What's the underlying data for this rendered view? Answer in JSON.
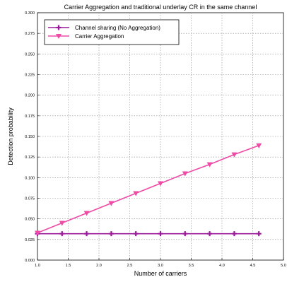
{
  "chart_data": {
    "type": "line",
    "title": "Carrier Aggregation and traditional underlay CR in the same channel",
    "xlabel": "Number of carriers",
    "ylabel": "Detection probability",
    "xlim": [
      1.0,
      5.0
    ],
    "ylim": [
      0.0,
      0.3
    ],
    "x_ticks": [
      "1.0",
      "1.5",
      "2.0",
      "2.5",
      "3.0",
      "3.5",
      "4.0",
      "4.5",
      "5.0"
    ],
    "y_ticks": [
      "0.000",
      "0.025",
      "0.050",
      "0.075",
      "0.100",
      "0.125",
      "0.150",
      "0.175",
      "0.200",
      "0.225",
      "0.250",
      "0.275",
      "0.300"
    ],
    "grid": true,
    "legend_position": "top-left",
    "x": [
      1.0,
      1.4,
      1.8,
      2.2,
      2.6,
      3.0,
      3.4,
      3.8,
      4.2,
      4.6
    ],
    "series": [
      {
        "name": "Channel sharing (No Aggregation)",
        "color": "#9a1a9a",
        "marker": "plus",
        "values": [
          0.032,
          0.032,
          0.032,
          0.032,
          0.032,
          0.032,
          0.032,
          0.032,
          0.032,
          0.032
        ]
      },
      {
        "name": "Carrier Aggregation",
        "color": "#ee4aa6",
        "marker": "triangle-down",
        "values": [
          0.033,
          0.045,
          0.057,
          0.069,
          0.081,
          0.093,
          0.105,
          0.116,
          0.128,
          0.139
        ]
      }
    ]
  }
}
